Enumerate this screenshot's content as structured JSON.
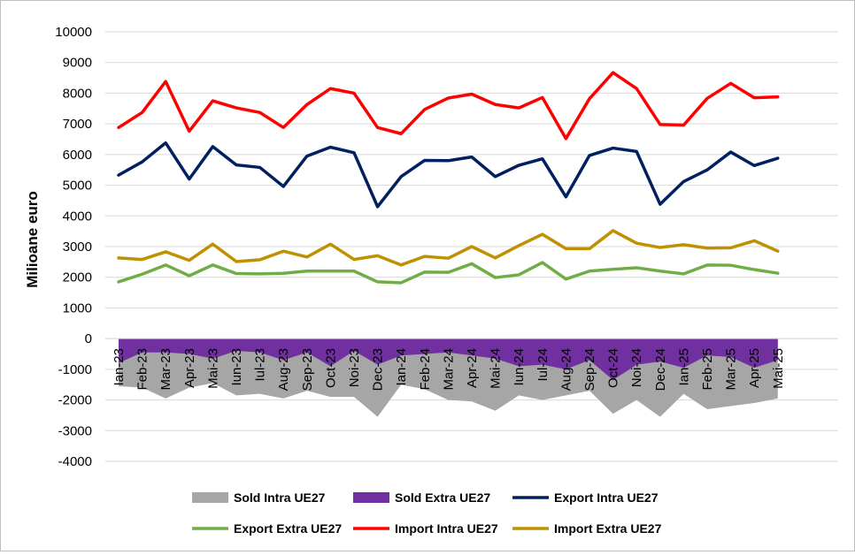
{
  "chart_data": {
    "type": "line",
    "title": "",
    "xlabel": "",
    "ylabel": "Milioane euro",
    "ylim": [
      -4000,
      10000
    ],
    "yticks": [
      10000,
      9000,
      8000,
      7000,
      6000,
      5000,
      4000,
      3000,
      2000,
      1000,
      0,
      -1000,
      -2000,
      -3000,
      -4000
    ],
    "grid": true,
    "legend_position": "bottom",
    "categories": [
      "Ian-23",
      "Feb-23",
      "Mar-23",
      "Apr-23",
      "Mai-23",
      "Iun-23",
      "Iul-23",
      "Aug-23",
      "Sep-23",
      "Oct-23",
      "Noi-23",
      "Dec-23",
      "Ian-24",
      "Feb-24",
      "Mar-24",
      "Apr-24",
      "Mai-24",
      "Iun-24",
      "Iul-24",
      "Aug-24",
      "Sep-24",
      "Oct-24",
      "Noi-24",
      "Dec-24",
      "Ian-25",
      "Feb-25",
      "Mar-25",
      "Apr-25",
      "Mai-25"
    ],
    "series": [
      {
        "name": "Sold Intra UE27",
        "kind": "area",
        "color": "#a6a6a6",
        "values": [
          -1550,
          -1600,
          -1950,
          -1600,
          -1450,
          -1850,
          -1800,
          -1950,
          -1700,
          -1900,
          -1900,
          -2550,
          -1500,
          -1650,
          -2000,
          -2050,
          -2350,
          -1850,
          -2000,
          -1850,
          -1700,
          -2450,
          -2000,
          -2550,
          -1800,
          -2300,
          -2200,
          -2100,
          -1950
        ]
      },
      {
        "name": "Sold Extra UE27",
        "kind": "area",
        "color": "#7030a0",
        "values": [
          -800,
          -450,
          -450,
          -500,
          -650,
          -400,
          -450,
          -700,
          -450,
          -900,
          -400,
          -850,
          -550,
          -500,
          -450,
          -550,
          -650,
          -900,
          -850,
          -1000,
          -700,
          -1350,
          -850,
          -750,
          -950,
          -550,
          -600,
          -950,
          -700
        ]
      },
      {
        "name": "Export Intra UE27",
        "kind": "line",
        "color": "#002060",
        "values": [
          5330,
          5760,
          6380,
          5200,
          6260,
          5660,
          5580,
          4960,
          5950,
          6240,
          6060,
          4300,
          5280,
          5810,
          5800,
          5920,
          5280,
          5650,
          5860,
          4620,
          5970,
          6210,
          6100,
          4380,
          5120,
          5500,
          6080,
          5640,
          5880
        ]
      },
      {
        "name": "Export Extra UE27",
        "kind": "line",
        "color": "#70ad47",
        "values": [
          1850,
          2100,
          2400,
          2050,
          2400,
          2120,
          2110,
          2130,
          2200,
          2200,
          2200,
          1850,
          1820,
          2170,
          2160,
          2440,
          1990,
          2080,
          2480,
          1940,
          2200,
          2260,
          2310,
          2200,
          2110,
          2400,
          2390,
          2250,
          2130
        ]
      },
      {
        "name": "Import Intra UE27",
        "kind": "line",
        "color": "#ff0000",
        "values": [
          6880,
          7370,
          8380,
          6760,
          7750,
          7520,
          7370,
          6880,
          7630,
          8150,
          8000,
          6880,
          6680,
          7470,
          7840,
          7970,
          7630,
          7520,
          7860,
          6520,
          7820,
          8670,
          8150,
          6980,
          6960,
          7830,
          8320,
          7850,
          7880
        ]
      },
      {
        "name": "Import Extra UE27",
        "kind": "line",
        "color": "#bf9000",
        "values": [
          2630,
          2580,
          2830,
          2550,
          3080,
          2510,
          2570,
          2850,
          2660,
          3080,
          2580,
          2700,
          2400,
          2680,
          2620,
          3000,
          2630,
          3030,
          3400,
          2930,
          2930,
          3520,
          3110,
          2970,
          3060,
          2950,
          2960,
          3190,
          2850
        ]
      }
    ]
  }
}
